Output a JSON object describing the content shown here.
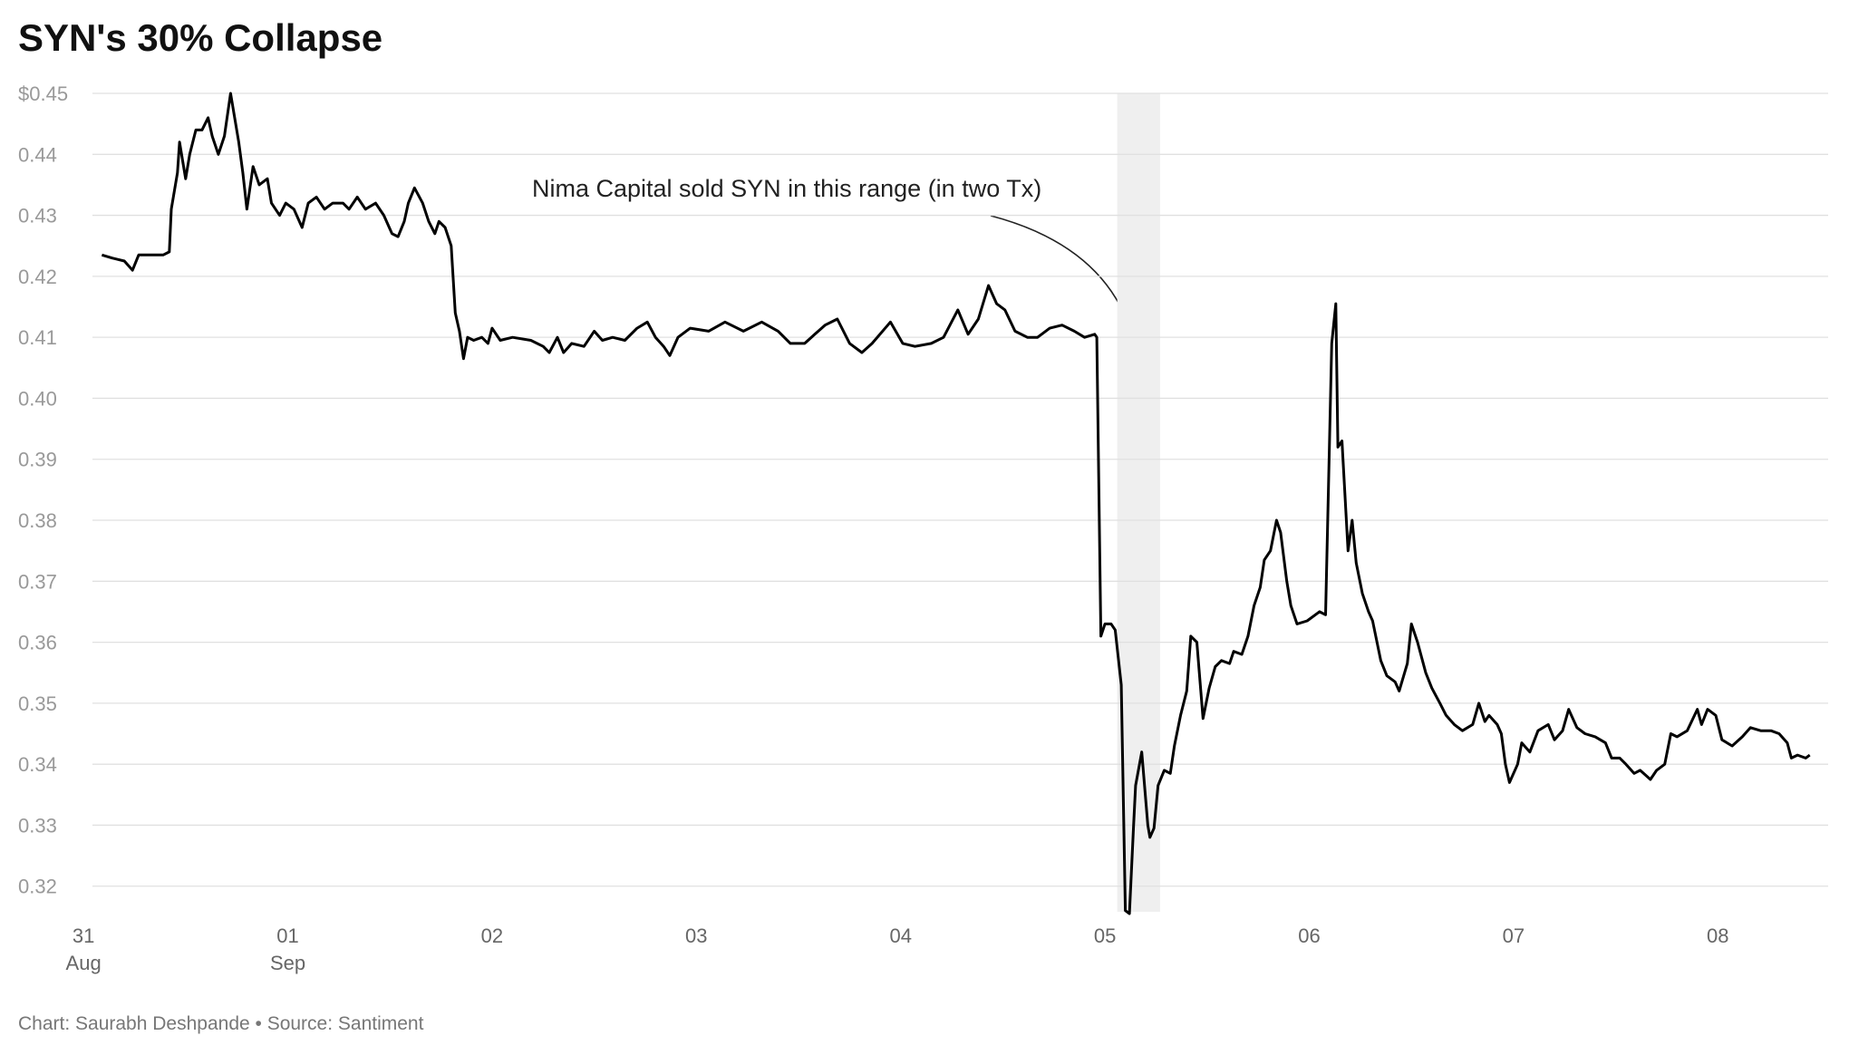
{
  "chart_data": {
    "type": "line",
    "title": "SYN's 30% Collapse",
    "footer": "Chart: Saurabh Deshpande • Source: Santiment",
    "annotation": "Nima Capital sold SYN in this range (in two Tx)",
    "highlight": [
      5.06,
      5.27
    ],
    "color": "#000000",
    "grid": true,
    "xlim": [
      -0.32,
      8.54
    ],
    "ylim": [
      0.3158,
      0.45
    ],
    "yticks": [
      {
        "value": 0.45,
        "label": "$0.45"
      },
      0.44,
      0.43,
      0.42,
      0.41,
      {
        "value": 0.4,
        "label": "0.40"
      },
      0.39,
      0.38,
      0.37,
      0.36,
      0.35,
      0.34,
      0.33,
      0.32
    ],
    "xticks": [
      {
        "value": 0,
        "label": "31\nAug"
      },
      {
        "value": 1,
        "label": "01\nSep"
      },
      {
        "value": 2,
        "label": "02"
      },
      {
        "value": 3,
        "label": "03"
      },
      {
        "value": 4,
        "label": "04"
      },
      {
        "value": 5,
        "label": "05"
      },
      {
        "value": 6,
        "label": "06"
      },
      {
        "value": 7,
        "label": "07"
      },
      {
        "value": 8,
        "label": "08"
      }
    ],
    "x": [
      0.09,
      0.14,
      0.2,
      0.24,
      0.27,
      0.33,
      0.39,
      0.42,
      0.43,
      0.46,
      0.47,
      0.5,
      0.52,
      0.55,
      0.58,
      0.61,
      0.63,
      0.66,
      0.69,
      0.72,
      0.76,
      0.78,
      0.8,
      0.83,
      0.86,
      0.9,
      0.92,
      0.96,
      0.99,
      1.03,
      1.07,
      1.1,
      1.14,
      1.18,
      1.22,
      1.27,
      1.3,
      1.34,
      1.38,
      1.43,
      1.47,
      1.51,
      1.54,
      1.57,
      1.59,
      1.62,
      1.66,
      1.69,
      1.72,
      1.74,
      1.77,
      1.8,
      1.82,
      1.84,
      1.86,
      1.88,
      1.91,
      1.95,
      1.98,
      2.0,
      2.04,
      2.1,
      2.19,
      2.25,
      2.28,
      2.32,
      2.35,
      2.39,
      2.45,
      2.5,
      2.54,
      2.59,
      2.65,
      2.71,
      2.76,
      2.8,
      2.84,
      2.87,
      2.91,
      2.97,
      3.06,
      3.14,
      3.23,
      3.32,
      3.4,
      3.46,
      3.53,
      3.58,
      3.63,
      3.69,
      3.75,
      3.81,
      3.86,
      3.95,
      4.01,
      4.07,
      4.15,
      4.21,
      4.28,
      4.33,
      4.38,
      4.43,
      4.47,
      4.51,
      4.56,
      4.62,
      4.67,
      4.73,
      4.79,
      4.85,
      4.9,
      4.95,
      4.96,
      4.98,
      5.0,
      5.03,
      5.05,
      5.08,
      5.1,
      5.12,
      5.14,
      5.15,
      5.18,
      5.21,
      5.22,
      5.24,
      5.26,
      5.29,
      5.32,
      5.34,
      5.37,
      5.4,
      5.42,
      5.45,
      5.48,
      5.51,
      5.54,
      5.57,
      5.61,
      5.63,
      5.67,
      5.7,
      5.73,
      5.76,
      5.78,
      5.81,
      5.84,
      5.86,
      5.89,
      5.91,
      5.94,
      5.99,
      6.05,
      6.08,
      6.11,
      6.13,
      6.14,
      6.16,
      6.19,
      6.21,
      6.23,
      6.26,
      6.29,
      6.31,
      6.35,
      6.38,
      6.42,
      6.44,
      6.48,
      6.5,
      6.53,
      6.57,
      6.6,
      6.64,
      6.67,
      6.71,
      6.75,
      6.8,
      6.83,
      6.86,
      6.88,
      6.92,
      6.94,
      6.96,
      6.98,
      7.02,
      7.04,
      7.08,
      7.12,
      7.17,
      7.2,
      7.24,
      7.27,
      7.31,
      7.35,
      7.4,
      7.45,
      7.48,
      7.52,
      7.55,
      7.59,
      7.62,
      7.67,
      7.7,
      7.74,
      7.77,
      7.8,
      7.85,
      7.9,
      7.92,
      7.95,
      7.99,
      8.02,
      8.07,
      8.12,
      8.16,
      8.21,
      8.26,
      8.3,
      8.34,
      8.36,
      8.39,
      8.43,
      8.45
    ],
    "values": [
      0.4235,
      0.423,
      0.4225,
      0.421,
      0.4235,
      0.4235,
      0.4235,
      0.424,
      0.431,
      0.437,
      0.442,
      0.436,
      0.44,
      0.444,
      0.444,
      0.446,
      0.443,
      0.44,
      0.443,
      0.45,
      0.442,
      0.437,
      0.431,
      0.438,
      0.435,
      0.436,
      0.432,
      0.43,
      0.432,
      0.431,
      0.428,
      0.432,
      0.433,
      0.431,
      0.432,
      0.432,
      0.431,
      0.433,
      0.431,
      0.432,
      0.43,
      0.427,
      0.4265,
      0.429,
      0.432,
      0.4345,
      0.432,
      0.429,
      0.427,
      0.429,
      0.428,
      0.425,
      0.414,
      0.411,
      0.4065,
      0.41,
      0.4095,
      0.41,
      0.409,
      0.4115,
      0.4095,
      0.41,
      0.4095,
      0.4085,
      0.4075,
      0.41,
      0.4075,
      0.409,
      0.4085,
      0.411,
      0.4095,
      0.41,
      0.4095,
      0.4115,
      0.4125,
      0.41,
      0.4085,
      0.407,
      0.41,
      0.4115,
      0.411,
      0.4125,
      0.411,
      0.4125,
      0.411,
      0.409,
      0.409,
      0.4105,
      0.412,
      0.413,
      0.409,
      0.4075,
      0.409,
      0.4125,
      0.409,
      0.4085,
      0.409,
      0.41,
      0.4145,
      0.4105,
      0.413,
      0.4185,
      0.4155,
      0.4145,
      0.411,
      0.41,
      0.41,
      0.4115,
      0.412,
      0.411,
      0.41,
      0.4105,
      0.41,
      0.361,
      0.363,
      0.363,
      0.362,
      0.353,
      0.316,
      0.3155,
      0.33,
      0.3365,
      0.342,
      0.33,
      0.328,
      0.3295,
      0.3365,
      0.339,
      0.3385,
      0.343,
      0.348,
      0.352,
      0.361,
      0.36,
      0.3475,
      0.3525,
      0.356,
      0.357,
      0.3565,
      0.3585,
      0.358,
      0.361,
      0.366,
      0.369,
      0.3735,
      0.375,
      0.38,
      0.378,
      0.37,
      0.366,
      0.363,
      0.3635,
      0.365,
      0.3645,
      0.409,
      0.4155,
      0.392,
      0.393,
      0.375,
      0.38,
      0.373,
      0.368,
      0.365,
      0.3635,
      0.357,
      0.3545,
      0.3535,
      0.352,
      0.3565,
      0.363,
      0.36,
      0.355,
      0.3525,
      0.35,
      0.348,
      0.3465,
      0.3455,
      0.3465,
      0.35,
      0.347,
      0.348,
      0.3465,
      0.345,
      0.34,
      0.337,
      0.34,
      0.3435,
      0.342,
      0.3455,
      0.3465,
      0.344,
      0.3455,
      0.349,
      0.346,
      0.345,
      0.3445,
      0.3435,
      0.341,
      0.341,
      0.34,
      0.3385,
      0.339,
      0.3375,
      0.339,
      0.34,
      0.345,
      0.3445,
      0.3455,
      0.349,
      0.3465,
      0.349,
      0.348,
      0.344,
      0.343,
      0.3445,
      0.346,
      0.3455,
      0.3455,
      0.345,
      0.3435,
      0.341,
      0.3415,
      0.341,
      0.3415
    ]
  }
}
